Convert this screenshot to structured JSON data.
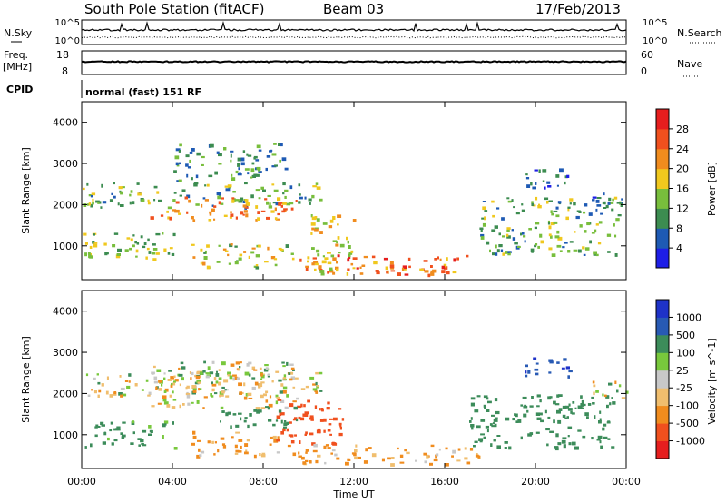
{
  "header": {
    "title": "South Pole Station (fitACF)",
    "beam": "Beam 03",
    "date": "17/Feb/2013"
  },
  "noise_panel": {
    "left_label": "N.Sky",
    "right_label": "N.Search",
    "left_ticks": [
      "10^5",
      "10^0"
    ],
    "right_ticks": [
      "10^5",
      "10^0"
    ]
  },
  "freq_panel": {
    "left_label_line1": "Freq.",
    "left_label_line2": "[MHz]",
    "right_label": "Nave",
    "left_ticks": [
      "18",
      "8"
    ],
    "right_ticks": [
      "60",
      "0"
    ]
  },
  "cpid": {
    "label": "CPID",
    "text": "normal (fast) 151 RF"
  },
  "colors": {
    "power": [
      "#1e1ee6",
      "#1e5ab4",
      "#3c8c50",
      "#78be3c",
      "#f0c81e",
      "#f08c1e",
      "#f0501e",
      "#e61e1e"
    ],
    "velocity": [
      "#e61e1e",
      "#f0501e",
      "#f08c1e",
      "#f0be6e",
      "#c8c8c8",
      "#78c83c",
      "#3c8c5a",
      "#285ab4",
      "#1e32c8"
    ]
  },
  "chart_data": [
    {
      "type": "heatmap",
      "title": "",
      "quantity": "Power",
      "xlabel": "",
      "ylabel": "Slant Range [km]",
      "ylim": [
        180,
        4500
      ],
      "y_ticks": [
        "1000",
        "2000",
        "3000",
        "4000"
      ],
      "colorbar_label": "Power [dB]",
      "colorbar_ticks": [
        "4",
        "8",
        "12",
        "16",
        "20",
        "24",
        "28"
      ],
      "colorbar_range": [
        0,
        32
      ],
      "echo_regions": [
        {
          "t_start": 0.0,
          "t_end": 10.5,
          "range_start": 1950,
          "range_end": 2550,
          "value": 12
        },
        {
          "t_start": 3.0,
          "t_end": 9.5,
          "range_start": 1650,
          "range_end": 2200,
          "value": 22
        },
        {
          "t_start": 0.0,
          "t_end": 4.2,
          "range_start": 700,
          "range_end": 1350,
          "value": 14
        },
        {
          "t_start": 4.8,
          "t_end": 9.3,
          "range_start": 500,
          "range_end": 1100,
          "value": 16
        },
        {
          "t_start": 9.5,
          "t_end": 17.5,
          "range_start": 300,
          "range_end": 800,
          "value": 24
        },
        {
          "t_start": 10.0,
          "t_end": 12.0,
          "range_start": 300,
          "range_end": 1800,
          "value": 18
        },
        {
          "t_start": 17.5,
          "t_end": 23.8,
          "range_start": 800,
          "range_end": 2200,
          "value": 12
        },
        {
          "t_start": 19.5,
          "t_end": 21.5,
          "range_start": 2400,
          "range_end": 2900,
          "value": 6
        },
        {
          "t_start": 22.5,
          "t_end": 24.0,
          "range_start": 1900,
          "range_end": 2300,
          "value": 8
        },
        {
          "t_start": 4.0,
          "t_end": 9.0,
          "range_start": 2600,
          "range_end": 3500,
          "value": 10
        }
      ]
    },
    {
      "type": "heatmap",
      "title": "",
      "quantity": "Velocity",
      "xlabel": "Time UT",
      "ylabel": "Slant Range [km]",
      "ylim": [
        180,
        4500
      ],
      "y_ticks": [
        "1000",
        "2000",
        "3000",
        "4000"
      ],
      "x_ticks": [
        "00:00",
        "04:00",
        "08:00",
        "12:00",
        "16:00",
        "20:00",
        "00:00"
      ],
      "xlim": [
        0,
        24
      ],
      "colorbar_label": "Velocity [m s^-1]",
      "colorbar_ticks": [
        "1000",
        "500",
        "100",
        "25",
        "-25",
        "-100",
        "-500",
        "-1000"
      ],
      "echo_regions": [
        {
          "t_start": 0.0,
          "t_end": 10.5,
          "range_start": 1950,
          "range_end": 2550,
          "value": 0
        },
        {
          "t_start": 3.0,
          "t_end": 9.5,
          "range_start": 1650,
          "range_end": 2800,
          "value": 0
        },
        {
          "t_start": 0.0,
          "t_end": 4.2,
          "range_start": 700,
          "range_end": 1350,
          "value": 200
        },
        {
          "t_start": 4.8,
          "t_end": 9.3,
          "range_start": 500,
          "range_end": 1100,
          "value": -150
        },
        {
          "t_start": 8.5,
          "t_end": 11.5,
          "range_start": 800,
          "range_end": 1900,
          "value": -700
        },
        {
          "t_start": 9.5,
          "t_end": 17.5,
          "range_start": 300,
          "range_end": 800,
          "value": -150
        },
        {
          "t_start": 17.0,
          "t_end": 23.5,
          "range_start": 700,
          "range_end": 2000,
          "value": 250
        },
        {
          "t_start": 19.5,
          "t_end": 21.5,
          "range_start": 2400,
          "range_end": 2900,
          "value": 900
        },
        {
          "t_start": 22.5,
          "t_end": 24.0,
          "range_start": 1900,
          "range_end": 2400,
          "value": 0
        },
        {
          "t_start": 6.0,
          "t_end": 9.5,
          "range_start": 1200,
          "range_end": 1700,
          "value": 300
        }
      ]
    }
  ]
}
